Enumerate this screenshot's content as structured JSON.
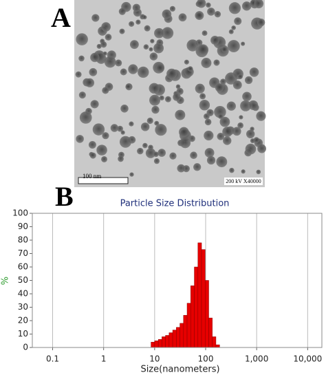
{
  "panel_a": {
    "label": "A",
    "scale_bar": "100 nm",
    "info": "200 kV X40000"
  },
  "panel_b": {
    "label": "B"
  },
  "chart_data": {
    "type": "histogram",
    "title": "Particle Size Distribution",
    "x_label": "Size(nanometers)",
    "y_label": "%",
    "bins": [
      8.5,
      10.0,
      11.8,
      13.9,
      16.3,
      19.2,
      22.6,
      26.6,
      31.3,
      36.8,
      43.3,
      51.0,
      60.0,
      70.6,
      83.1,
      97.8,
      115,
      135,
      159,
      188
    ],
    "values": [
      4,
      5,
      6,
      8,
      9,
      11,
      13,
      15,
      18,
      24,
      33,
      46,
      60,
      78,
      73,
      50,
      22,
      8,
      2
    ],
    "color": "#e60000",
    "x_log": true,
    "grid": true,
    "xlim": [
      0.04,
      19000
    ],
    "xticks": [
      0.1,
      1,
      10,
      100,
      {
        "value": 1000,
        "label": "1,000"
      },
      {
        "value": 10000,
        "label": "10,000"
      }
    ],
    "ylim": [
      0,
      100
    ],
    "yticks": [
      0,
      10,
      20,
      30,
      40,
      50,
      60,
      70,
      80,
      90,
      100
    ]
  }
}
